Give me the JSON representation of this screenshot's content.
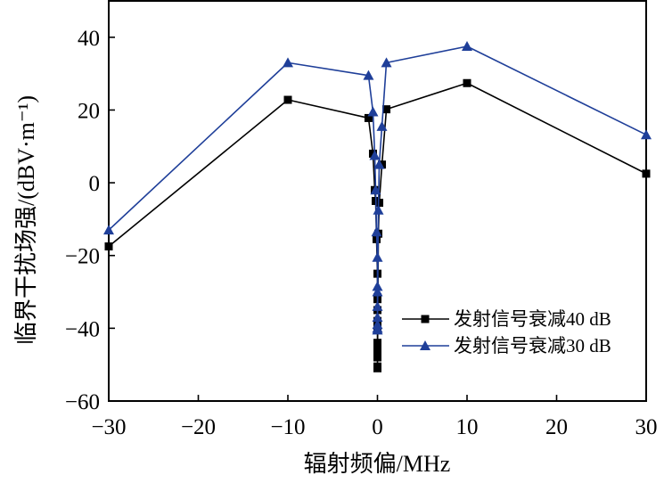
{
  "chart_data": {
    "type": "line",
    "title": "",
    "xlabel": "辐射频偏/MHz",
    "ylabel": "临界干扰场强/(dBV·m⁻¹)",
    "xlim": [
      -30,
      30
    ],
    "ylim": [
      -60,
      50
    ],
    "xticks": [
      -30,
      -20,
      -10,
      0,
      10,
      20,
      30
    ],
    "yticks": [
      -60,
      -40,
      -20,
      0,
      20,
      40
    ],
    "xtick_labels": [
      "−30",
      "−20",
      "−10",
      "0",
      "10",
      "20",
      "30"
    ],
    "ytick_labels": [
      "−60",
      "−40",
      "−20",
      "0",
      "20",
      "40"
    ],
    "legend_position": "lower-right",
    "series": [
      {
        "name": "发射信号衰减40 dB",
        "color": "#000000",
        "marker": "square",
        "x": [
          -30,
          -10,
          -1,
          -0.5,
          -0.3,
          -0.2,
          -0.1,
          0,
          0,
          0,
          0,
          0,
          0,
          0,
          0,
          0,
          0,
          0,
          0.1,
          0.2,
          0.5,
          1,
          10,
          30
        ],
        "y": [
          -17.5,
          22.8,
          17.8,
          8,
          -2,
          -5,
          -15.5,
          -25,
          -31.5,
          -32,
          -35,
          -38,
          -40,
          -44,
          -46,
          -48,
          -50.5,
          -51,
          -14,
          -5.5,
          5,
          20.2,
          27.4,
          2.5
        ]
      },
      {
        "name": "发射信号衰减30 dB",
        "color": "#1f3f99",
        "marker": "triangle",
        "x": [
          -30,
          -10,
          -1,
          -0.5,
          -0.3,
          -0.2,
          -0.1,
          0,
          0,
          0,
          0,
          0,
          0,
          0,
          0,
          0.1,
          0.2,
          0.5,
          1,
          10,
          30
        ],
        "y": [
          -13,
          33,
          29.5,
          19.5,
          7.5,
          -2,
          -13.5,
          -20.5,
          -28.5,
          -30,
          -34,
          -37,
          -39,
          -40,
          -40.5,
          -7.5,
          5,
          15.5,
          33,
          37.5,
          13.2
        ]
      }
    ]
  }
}
